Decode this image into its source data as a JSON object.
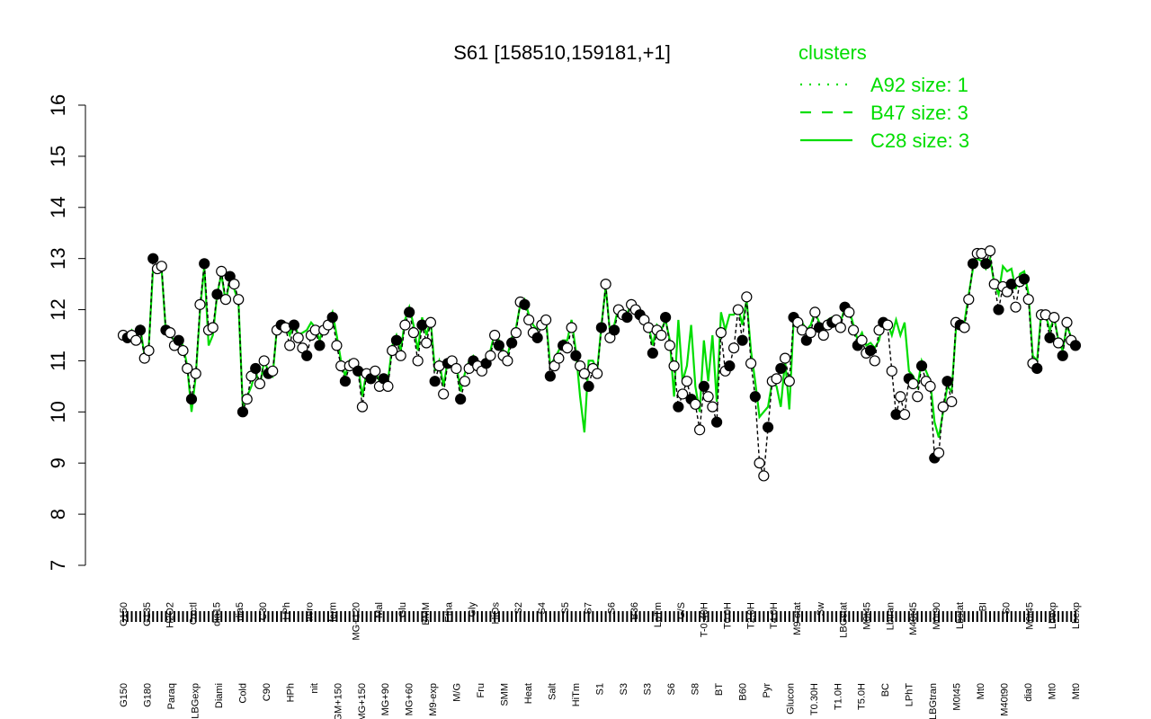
{
  "chart_data": {
    "type": "line",
    "title": "S61 [158510,159181,+1]",
    "xlabel": "",
    "ylabel": "",
    "ylim": [
      7,
      16
    ],
    "y_ticks": [
      7,
      8,
      9,
      10,
      11,
      12,
      13,
      14,
      15,
      16
    ],
    "grid": false,
    "legend_position": "top-right",
    "legend": {
      "title": "clusters",
      "color": "#00dd00",
      "entries": [
        {
          "label": "A92 size: 1",
          "style": "dotted"
        },
        {
          "label": "B47 size: 3",
          "style": "dashed"
        },
        {
          "label": "C28 size: 3",
          "style": "solid"
        }
      ]
    },
    "x_labels_top": [
      "G150",
      "G135",
      "H2O2",
      "Oxctl",
      "dia15",
      "dia5",
      "C30",
      "LPh",
      "aero",
      "ferm",
      "MG+120",
      "Mal",
      "Glu",
      "BMM",
      "Etha",
      "Gly",
      "HiOs",
      "S2",
      "S4",
      "S5",
      "S7",
      "S6",
      "B36",
      "LoTm",
      "G/S",
      "T-0.40H",
      "T0.0H",
      "T2.0H",
      "T4.0H",
      "M9-stat",
      "Sw",
      "LBGstat",
      "M0t45",
      "Lbtran",
      "M40t45",
      "M0t90",
      "Lbstat",
      "BI",
      "S0",
      "M0t45",
      "Lbexp",
      "Lbexp"
    ],
    "x_labels_bottom": [
      "G150",
      "G180",
      "Paraq",
      "LBGexp",
      "Diami",
      "Cold",
      "C90",
      "HPh",
      "nit",
      "GM+150",
      "MG+150",
      "MG+90",
      "MG+60",
      "M9-exp",
      "M/G",
      "Fru",
      "SMM",
      "Heat",
      "Salt",
      "HiTm",
      "S1",
      "S3",
      "S3",
      "S6",
      "S8",
      "BT",
      "B60",
      "Pyr",
      "Glucon",
      "T0.30H",
      "T1.0H",
      "T5.0H",
      "BC",
      "LPhT",
      "LBGtran",
      "M0t45",
      "Mt0",
      "M40t90",
      "dia0",
      "Mt0",
      "Mt0"
    ],
    "series": [
      {
        "style": "points",
        "values": [
          11.5,
          11.45,
          11.5,
          11.4,
          11.6,
          11.05,
          11.2,
          13.0,
          12.8,
          12.85,
          11.6,
          11.55,
          11.3,
          11.4,
          11.2,
          10.85,
          10.25,
          10.75,
          12.1,
          12.9,
          11.6,
          11.65,
          12.3,
          12.75,
          12.2,
          12.65,
          12.5,
          12.2,
          10.0,
          10.25,
          10.7,
          10.85,
          10.55,
          11.0,
          10.75,
          10.8,
          11.6,
          11.7,
          11.65,
          11.3,
          11.7,
          11.45,
          11.25,
          11.1,
          11.5,
          11.6,
          11.3,
          11.6,
          11.7,
          11.85,
          11.3,
          10.9,
          10.6,
          10.9,
          10.95,
          10.8,
          10.1,
          10.75,
          10.65,
          10.8,
          10.5,
          10.65,
          10.5,
          11.2,
          11.4,
          11.1,
          11.7,
          11.95,
          11.55,
          11.0,
          11.7,
          11.35,
          11.75,
          10.6,
          10.9,
          10.35,
          10.95,
          11.0,
          10.85,
          10.25,
          10.6,
          10.85,
          11.0,
          10.9,
          10.8,
          10.95,
          11.1,
          11.5,
          11.3,
          11.1,
          11.0,
          11.35,
          11.55,
          12.15,
          12.1,
          11.8,
          11.55,
          11.45,
          11.7,
          11.8,
          10.7,
          10.9,
          11.05,
          11.3,
          11.25,
          11.65,
          11.1,
          10.9,
          10.75,
          10.5,
          10.85,
          10.75,
          11.65,
          12.5,
          11.45,
          11.6,
          12.0,
          11.9,
          11.85,
          12.1,
          12.0,
          11.9,
          11.8,
          11.65,
          11.15,
          11.6,
          11.5,
          11.85,
          11.3,
          10.9,
          10.1,
          10.35,
          10.6,
          10.25,
          10.15,
          9.65,
          10.5,
          10.3,
          10.1,
          9.8,
          11.55,
          10.8,
          10.9,
          11.25,
          12.0,
          11.4,
          12.25,
          10.95,
          10.3,
          9.0,
          8.75,
          9.7,
          10.6,
          10.65,
          10.85,
          11.05,
          10.6,
          11.85,
          11.75,
          11.6,
          11.4,
          11.55,
          11.95,
          11.65,
          11.5,
          11.7,
          11.75,
          11.8,
          11.65,
          12.05,
          11.95,
          11.6,
          11.3,
          11.4,
          11.15,
          11.2,
          11.0,
          11.6,
          11.75,
          11.7,
          10.8,
          9.95,
          10.3,
          9.95,
          10.65,
          10.55,
          10.3,
          10.9,
          10.6,
          10.5,
          9.1,
          9.2,
          10.1,
          10.6,
          10.2,
          11.75,
          11.7,
          11.65,
          12.2,
          12.9,
          13.1,
          13.1,
          12.9,
          13.15,
          12.5,
          12.0,
          12.45,
          12.35,
          12.5,
          12.05,
          12.55,
          12.6,
          12.2,
          10.95,
          10.85,
          11.9,
          11.9,
          11.45,
          11.85,
          11.35,
          11.1,
          11.75,
          11.4,
          11.3
        ]
      },
      {
        "name": "C28",
        "style": "solid",
        "values": [
          11.5,
          11.5,
          11.6,
          11.45,
          11.65,
          11.1,
          11.3,
          12.8,
          12.75,
          12.8,
          11.55,
          11.5,
          11.4,
          11.45,
          11.3,
          10.9,
          10.0,
          10.7,
          12.0,
          12.85,
          11.3,
          11.5,
          12.3,
          12.7,
          12.15,
          12.6,
          12.4,
          12.15,
          10.1,
          10.3,
          10.5,
          10.8,
          10.5,
          11.0,
          10.8,
          10.7,
          11.65,
          11.75,
          11.7,
          11.5,
          11.75,
          11.5,
          11.55,
          11.6,
          11.75,
          11.65,
          11.4,
          11.7,
          11.75,
          11.95,
          11.5,
          11.0,
          10.7,
          11.0,
          10.9,
          10.9,
          10.3,
          10.8,
          10.7,
          10.8,
          10.6,
          10.7,
          10.6,
          11.3,
          11.5,
          11.2,
          11.8,
          12.05,
          11.7,
          11.2,
          11.85,
          11.5,
          11.8,
          10.8,
          11.0,
          10.5,
          11.0,
          11.05,
          10.95,
          10.4,
          10.75,
          11.0,
          11.1,
          11.0,
          10.9,
          11.05,
          11.2,
          11.55,
          11.4,
          11.2,
          11.1,
          11.45,
          11.65,
          12.1,
          12.2,
          11.9,
          11.7,
          11.6,
          11.8,
          11.85,
          10.9,
          11.05,
          11.2,
          11.4,
          11.4,
          11.8,
          11.2,
          10.3,
          9.6,
          11.0,
          11.0,
          10.8,
          11.7,
          12.45,
          11.55,
          11.7,
          12.05,
          11.95,
          11.9,
          12.15,
          12.05,
          11.95,
          11.85,
          11.7,
          11.3,
          11.7,
          11.6,
          11.8,
          11.4,
          10.3,
          11.8,
          10.6,
          10.9,
          11.7,
          10.5,
          10.0,
          11.4,
          10.6,
          11.5,
          10.2,
          11.95,
          11.6,
          11.9,
          11.9,
          12.05,
          11.7,
          12.2,
          11.2,
          10.6,
          9.9,
          10.0,
          10.1,
          10.6,
          10.5,
          10.1,
          11.0,
          10.05,
          11.8,
          11.8,
          11.75,
          11.6,
          11.7,
          11.95,
          11.75,
          11.65,
          11.8,
          11.85,
          11.85,
          11.75,
          12.05,
          12.0,
          11.7,
          11.4,
          11.55,
          11.3,
          11.35,
          11.25,
          11.4,
          11.8,
          11.75,
          11.5,
          11.8,
          11.5,
          11.75,
          10.8,
          10.7,
          10.5,
          11.0,
          10.8,
          10.6,
          9.8,
          9.5,
          10.0,
          10.5,
          10.4,
          11.6,
          11.75,
          11.75,
          12.3,
          12.8,
          13.0,
          12.95,
          12.8,
          13.0,
          12.5,
          12.3,
          12.85,
          12.75,
          12.8,
          12.4,
          12.7,
          12.75,
          12.3,
          11.1,
          11.0,
          11.95,
          11.9,
          11.6,
          11.85,
          11.4,
          11.2,
          11.7,
          11.45,
          11.35
        ]
      }
    ]
  }
}
